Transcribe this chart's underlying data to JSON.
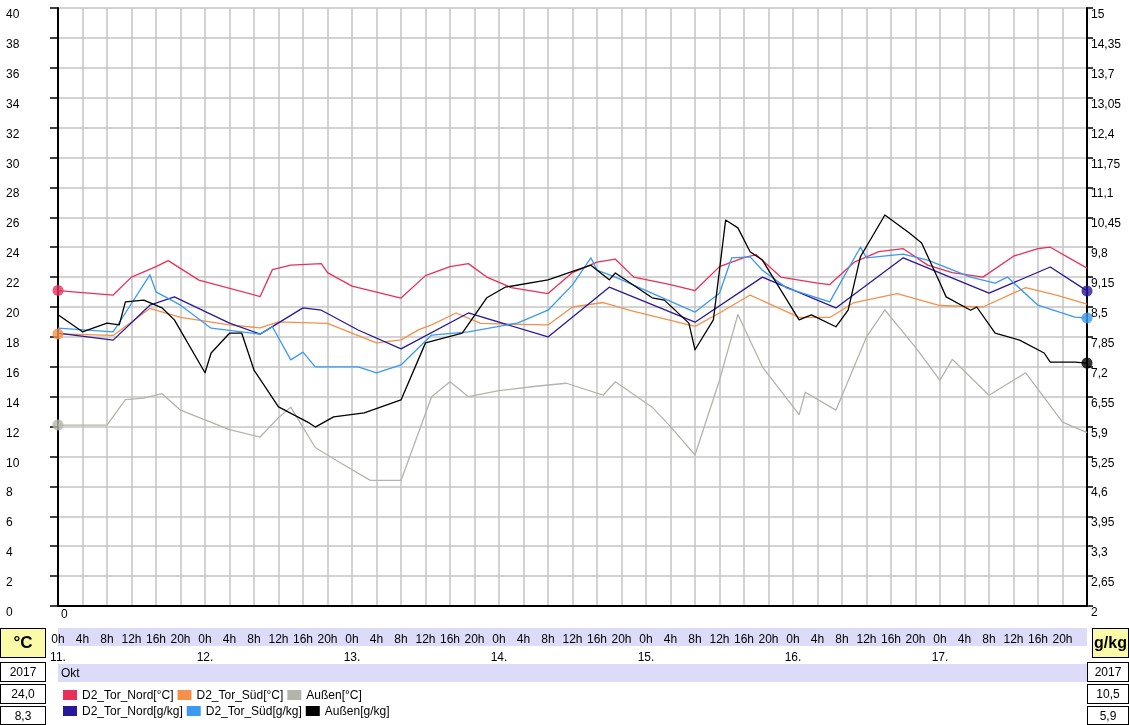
{
  "chart_data": {
    "type": "line",
    "ylabel": "°C",
    "y2label": "g/kg",
    "xlim": [
      "2017-10-11T00:00",
      "2017-10-18T00:00"
    ],
    "xticks": [
      {
        "value": "2017-10-11T00:00",
        "label": "0h\n11."
      },
      {
        "value": "2017-10-11T04:00",
        "label": "4h"
      },
      {
        "value": "2017-10-11T08:00",
        "label": "8h"
      },
      {
        "value": "2017-10-11T12:00",
        "label": "12h"
      },
      {
        "value": "2017-10-11T16:00",
        "label": "16h"
      },
      {
        "value": "2017-10-11T20:00",
        "label": "20h"
      },
      {
        "value": "2017-10-12T00:00",
        "label": "0h\n12."
      },
      {
        "value": "2017-10-12T04:00",
        "label": "4h"
      },
      {
        "value": "2017-10-12T08:00",
        "label": "8h"
      },
      {
        "value": "2017-10-12T12:00",
        "label": "12h"
      },
      {
        "value": "2017-10-12T16:00",
        "label": "16h"
      },
      {
        "value": "2017-10-12T20:00",
        "label": "20h"
      },
      {
        "value": "2017-10-13T00:00",
        "label": "0h\n13."
      },
      {
        "value": "2017-10-13T04:00",
        "label": "4h"
      },
      {
        "value": "2017-10-13T08:00",
        "label": "8h"
      },
      {
        "value": "2017-10-13T12:00",
        "label": "12h"
      },
      {
        "value": "2017-10-13T16:00",
        "label": "16h"
      },
      {
        "value": "2017-10-13T20:00",
        "label": "20h"
      },
      {
        "value": "2017-10-14T00:00",
        "label": "0h\n14."
      },
      {
        "value": "2017-10-14T04:00",
        "label": "4h"
      },
      {
        "value": "2017-10-14T08:00",
        "label": "8h"
      },
      {
        "value": "2017-10-14T12:00",
        "label": "12h"
      },
      {
        "value": "2017-10-14T16:00",
        "label": "16h"
      },
      {
        "value": "2017-10-14T20:00",
        "label": "20h"
      },
      {
        "value": "2017-10-15T00:00",
        "label": "0h\n15."
      },
      {
        "value": "2017-10-15T04:00",
        "label": "4h"
      },
      {
        "value": "2017-10-15T08:00",
        "label": "8h"
      },
      {
        "value": "2017-10-15T12:00",
        "label": "12h"
      },
      {
        "value": "2017-10-15T16:00",
        "label": "16h"
      },
      {
        "value": "2017-10-15T20:00",
        "label": "20h"
      },
      {
        "value": "2017-10-16T00:00",
        "label": "0h\n16."
      },
      {
        "value": "2017-10-16T04:00",
        "label": "4h"
      },
      {
        "value": "2017-10-16T08:00",
        "label": "8h"
      },
      {
        "value": "2017-10-16T12:00",
        "label": "12h"
      },
      {
        "value": "2017-10-16T16:00",
        "label": "16h"
      },
      {
        "value": "2017-10-16T20:00",
        "label": "20h"
      },
      {
        "value": "2017-10-17T00:00",
        "label": "0h\n17."
      },
      {
        "value": "2017-10-17T04:00",
        "label": "4h"
      },
      {
        "value": "2017-10-17T08:00",
        "label": "8h"
      },
      {
        "value": "2017-10-17T12:00",
        "label": "12h"
      },
      {
        "value": "2017-10-17T16:00",
        "label": "16h"
      },
      {
        "value": "2017-10-17T20:00",
        "label": "20h"
      }
    ],
    "ylim": [
      0,
      40
    ],
    "yticks": [
      0,
      2,
      4,
      6,
      8,
      10,
      12,
      14,
      16,
      18,
      20,
      22,
      24,
      26,
      28,
      30,
      32,
      34,
      36,
      38,
      40
    ],
    "y2lim": [
      2,
      15
    ],
    "y2ticks": [
      2,
      {
        "value": 2.65,
        "label": "2,65"
      },
      {
        "value": 3.3,
        "label": "3,3"
      },
      {
        "value": 3.95,
        "label": "3,95"
      },
      {
        "value": 4.6,
        "label": "4,6"
      },
      {
        "value": 5.25,
        "label": "5,25"
      },
      {
        "value": 5.9,
        "label": "5,9"
      },
      {
        "value": 6.55,
        "label": "6,55"
      },
      {
        "value": 7.2,
        "label": "7,2"
      },
      {
        "value": 7.85,
        "label": "7,85"
      },
      {
        "value": 8.5,
        "label": "8,5"
      },
      {
        "value": 9.15,
        "label": "9,15"
      },
      {
        "value": 9.8,
        "label": "9,8"
      },
      {
        "value": 10.45,
        "label": "10,45"
      },
      {
        "value": 11.1,
        "label": "11,1"
      },
      {
        "value": 11.75,
        "label": "11,75"
      },
      {
        "value": 12.4,
        "label": "12,4"
      },
      {
        "value": 13.05,
        "label": "13,05"
      },
      {
        "value": 13.7,
        "label": "13,7"
      },
      {
        "value": 14.35,
        "label": "14,35"
      },
      15
    ],
    "grid": true,
    "legend": "bottom",
    "annotations": [
      "0",
      "Okt",
      "2017",
      "24,0",
      "8,3",
      "2017",
      "10,5",
      "5,9"
    ],
    "series": [
      {
        "name": "D2_Tor_Nord[°C]",
        "color": "#e8305a",
        "x": [
          "2017-10-11T00:00",
          "2017-10-11T09:00",
          "2017-10-11T12:00",
          "2017-10-11T16:00",
          "2017-10-11T18:00",
          "2017-10-11T23:00",
          "2017-10-12T09:00",
          "2017-10-12T11:00",
          "2017-10-12T14:00",
          "2017-10-12T19:00",
          "2017-10-12T20:00",
          "2017-10-13T00:00",
          "2017-10-13T08:00",
          "2017-10-13T12:00",
          "2017-10-13T16:00",
          "2017-10-13T19:00",
          "2017-10-13T22:00",
          "2017-10-14T02:00",
          "2017-10-14T08:00",
          "2017-10-14T12:00",
          "2017-10-14T16:00",
          "2017-10-14T19:00",
          "2017-10-14T22:00",
          "2017-10-15T04:00",
          "2017-10-15T08:00",
          "2017-10-15T12:00",
          "2017-10-15T16:00",
          "2017-10-15T18:00",
          "2017-10-15T22:00",
          "2017-10-16T04:00",
          "2017-10-16T06:00",
          "2017-10-16T10:00",
          "2017-10-16T14:00",
          "2017-10-16T18:00",
          "2017-10-16T22:00",
          "2017-10-17T02:00",
          "2017-10-17T07:00",
          "2017-10-17T12:00",
          "2017-10-17T16:00",
          "2017-10-17T18:00",
          "2017-10-18T00:00"
        ],
        "values": [
          21.1,
          20.8,
          22.0,
          22.7,
          23.1,
          21.8,
          20.7,
          22.5,
          22.8,
          22.9,
          22.3,
          21.4,
          20.6,
          22.1,
          22.7,
          22.9,
          22.0,
          21.3,
          20.9,
          22.3,
          23.0,
          23.2,
          22.0,
          21.5,
          21.1,
          22.7,
          23.3,
          23.5,
          22.0,
          21.6,
          21.5,
          23.0,
          23.7,
          23.9,
          22.8,
          22.3,
          22.0,
          23.4,
          23.9,
          24.0,
          22.6
        ]
      },
      {
        "name": "D2_Tor_Süd[°C]",
        "color": "#f4904a",
        "x": [
          "2017-10-11T00:00",
          "2017-10-11T09:00",
          "2017-10-11T15:00",
          "2017-10-11T20:00",
          "2017-10-12T04:00",
          "2017-10-12T09:00",
          "2017-10-12T12:00",
          "2017-10-12T20:00",
          "2017-10-13T04:00",
          "2017-10-13T08:00",
          "2017-10-13T11:00",
          "2017-10-13T13:00",
          "2017-10-13T17:00",
          "2017-10-13T21:00",
          "2017-10-14T08:00",
          "2017-10-14T12:00",
          "2017-10-14T17:00",
          "2017-10-14T22:00",
          "2017-10-15T08:00",
          "2017-10-15T12:00",
          "2017-10-15T17:00",
          "2017-10-16T01:00",
          "2017-10-16T06:00",
          "2017-10-16T10:00",
          "2017-10-16T17:00",
          "2017-10-17T00:00",
          "2017-10-17T07:00",
          "2017-10-17T14:00",
          "2017-10-17T19:00",
          "2017-10-18T00:00"
        ],
        "values": [
          18.2,
          18.1,
          19.9,
          19.3,
          18.8,
          18.6,
          19.0,
          18.9,
          17.6,
          17.8,
          18.5,
          18.8,
          19.6,
          18.9,
          18.8,
          20.0,
          20.3,
          19.7,
          18.7,
          19.6,
          20.8,
          19.3,
          19.3,
          20.3,
          20.9,
          20.1,
          20.0,
          21.3,
          20.8,
          20.2
        ]
      },
      {
        "name": "Außen[°C]",
        "color": "#b4b4ac",
        "x": [
          "2017-10-11T00:00",
          "2017-10-11T08:00",
          "2017-10-11T11:00",
          "2017-10-11T14:00",
          "2017-10-11T17:00",
          "2017-10-11T20:00",
          "2017-10-12T04:00",
          "2017-10-12T09:00",
          "2017-10-12T12:00",
          "2017-10-12T14:00",
          "2017-10-12T18:00",
          "2017-10-12T22:00",
          "2017-10-13T03:00",
          "2017-10-13T08:00",
          "2017-10-13T13:00",
          "2017-10-13T16:00",
          "2017-10-13T19:00",
          "2017-10-14T00:00",
          "2017-10-14T06:00",
          "2017-10-14T11:00",
          "2017-10-14T17:00",
          "2017-10-14T19:00",
          "2017-10-15T01:00",
          "2017-10-15T04:00",
          "2017-10-15T08:00",
          "2017-10-15T12:00",
          "2017-10-15T15:00",
          "2017-10-15T19:00",
          "2017-10-16T01:00",
          "2017-10-16T02:00",
          "2017-10-16T07:00",
          "2017-10-16T12:00",
          "2017-10-16T15:00",
          "2017-10-16T20:00",
          "2017-10-17T00:00",
          "2017-10-17T02:00",
          "2017-10-17T08:00",
          "2017-10-17T14:00",
          "2017-10-17T20:00",
          "2017-10-18T00:00"
        ],
        "values": [
          12.1,
          12.1,
          13.8,
          13.9,
          14.2,
          13.1,
          11.8,
          11.3,
          12.6,
          13.3,
          10.6,
          9.6,
          8.4,
          8.4,
          14.0,
          15.0,
          14.0,
          14.4,
          14.7,
          14.9,
          14.1,
          15.0,
          13.3,
          12.0,
          10.1,
          15.1,
          19.5,
          16.0,
          12.8,
          14.3,
          13.1,
          18.0,
          19.8,
          17.3,
          15.1,
          16.5,
          14.1,
          15.6,
          12.3,
          11.6
        ]
      },
      {
        "name": "D2_Tor_Nord[g/kg]",
        "color": "#2a189a",
        "axis": "y2",
        "x": [
          "2017-10-11T00:00",
          "2017-10-11T09:00",
          "2017-10-11T15:00",
          "2017-10-11T19:00",
          "2017-10-12T04:00",
          "2017-10-12T09:00",
          "2017-10-12T16:00",
          "2017-10-12T19:00",
          "2017-10-13T01:00",
          "2017-10-13T08:00",
          "2017-10-13T19:00",
          "2017-10-14T08:00",
          "2017-10-14T18:00",
          "2017-10-15T08:00",
          "2017-10-15T19:00",
          "2017-10-16T07:00",
          "2017-10-16T18:00",
          "2017-10-17T08:00",
          "2017-10-17T18:00",
          "2017-10-18T00:00"
        ],
        "values": [
          7.93,
          7.78,
          8.54,
          8.72,
          8.15,
          7.91,
          8.48,
          8.43,
          8.0,
          7.59,
          8.37,
          7.85,
          8.93,
          8.17,
          9.15,
          8.48,
          9.57,
          8.8,
          9.37,
          8.85
        ]
      },
      {
        "name": "D2_Tor_Süd[g/kg]",
        "color": "#3a9af0",
        "axis": "y2",
        "x": [
          "2017-10-11T00:00",
          "2017-10-11T09:00",
          "2017-10-11T11:00",
          "2017-10-11T15:00",
          "2017-10-11T16:00",
          "2017-10-11T20:00",
          "2017-10-12T01:00",
          "2017-10-12T09:00",
          "2017-10-12T11:00",
          "2017-10-12T14:00",
          "2017-10-12T16:00",
          "2017-10-12T18:00",
          "2017-10-13T01:00",
          "2017-10-13T04:00",
          "2017-10-13T08:00",
          "2017-10-13T13:00",
          "2017-10-13T19:00",
          "2017-10-14T03:00",
          "2017-10-14T08:00",
          "2017-10-14T12:00",
          "2017-10-14T15:00",
          "2017-10-14T16:00",
          "2017-10-14T19:00",
          "2017-10-15T08:00",
          "2017-10-15T12:00",
          "2017-10-15T14:00",
          "2017-10-15T17:00",
          "2017-10-15T19:00",
          "2017-10-15T23:00",
          "2017-10-16T06:00",
          "2017-10-16T11:00",
          "2017-10-16T12:00",
          "2017-10-16T18:00",
          "2017-10-16T22:00",
          "2017-10-17T05:00",
          "2017-10-17T09:00",
          "2017-10-17T11:00",
          "2017-10-17T16:00",
          "2017-10-17T22:00",
          "2017-10-18T00:00"
        ],
        "values": [
          8.04,
          7.96,
          8.37,
          9.2,
          8.83,
          8.54,
          8.04,
          7.91,
          8.07,
          7.35,
          7.52,
          7.2,
          7.2,
          7.07,
          7.24,
          7.89,
          7.96,
          8.15,
          8.43,
          8.98,
          9.57,
          9.3,
          9.15,
          8.39,
          8.8,
          9.57,
          9.59,
          9.3,
          8.91,
          8.61,
          9.8,
          9.57,
          9.65,
          9.52,
          9.15,
          9.02,
          9.15,
          8.54,
          8.28,
          8.26
        ]
      },
      {
        "name": "Außen[g/kg]",
        "color": "#000000",
        "axis": "y2",
        "x": [
          "2017-10-11T00:00",
          "2017-10-11T04:00",
          "2017-10-11T08:00",
          "2017-10-11T10:00",
          "2017-10-11T11:00",
          "2017-10-11T14:00",
          "2017-10-11T17:00",
          "2017-10-11T19:00",
          "2017-10-12T00:00",
          "2017-10-12T01:00",
          "2017-10-12T04:00",
          "2017-10-12T06:00",
          "2017-10-12T08:00",
          "2017-10-12T12:00",
          "2017-10-12T17:00",
          "2017-10-12T18:00",
          "2017-10-12T21:00",
          "2017-10-13T02:00",
          "2017-10-13T08:00",
          "2017-10-13T12:00",
          "2017-10-13T18:00",
          "2017-10-13T22:00",
          "2017-10-14T01:00",
          "2017-10-14T08:00",
          "2017-10-14T15:00",
          "2017-10-14T18:00",
          "2017-10-14T19:00",
          "2017-10-15T01:00",
          "2017-10-15T03:00",
          "2017-10-15T07:00",
          "2017-10-15T08:00",
          "2017-10-15T11:00",
          "2017-10-15T13:00",
          "2017-10-15T15:00",
          "2017-10-15T17:00",
          "2017-10-15T19:00",
          "2017-10-16T01:00",
          "2017-10-16T03:00",
          "2017-10-16T07:00",
          "2017-10-16T09:00",
          "2017-10-16T11:00",
          "2017-10-16T15:00",
          "2017-10-16T19:00",
          "2017-10-16T21:00",
          "2017-10-17T00:00",
          "2017-10-17T01:00",
          "2017-10-17T05:00",
          "2017-10-17T06:00",
          "2017-10-17T09:00",
          "2017-10-17T13:00",
          "2017-10-17T17:00",
          "2017-10-17T18:00",
          "2017-10-17T22:00",
          "2017-10-18T00:00"
        ],
        "values": [
          8.33,
          7.96,
          8.15,
          8.11,
          8.61,
          8.65,
          8.48,
          8.22,
          7.07,
          7.5,
          7.93,
          7.93,
          7.13,
          6.33,
          5.98,
          5.89,
          6.11,
          6.2,
          6.48,
          7.72,
          7.93,
          8.7,
          8.93,
          9.09,
          9.41,
          9.09,
          9.24,
          8.7,
          8.65,
          8.15,
          7.57,
          8.22,
          10.39,
          10.22,
          9.7,
          9.52,
          8.22,
          8.33,
          8.07,
          8.43,
          9.59,
          10.5,
          10.11,
          9.89,
          9.02,
          8.72,
          8.43,
          8.5,
          7.93,
          7.78,
          7.5,
          7.3,
          7.3,
          7.28
        ]
      },
      {
        "type": "scatter",
        "marker": "circle",
        "color": "#e8305a",
        "x": [
          "2017-10-11T00:00"
        ],
        "values": [
          21.1
        ]
      },
      {
        "type": "scatter",
        "marker": "circle",
        "color": "#f4904a",
        "x": [
          "2017-10-11T00:00"
        ],
        "values": [
          18.2
        ]
      },
      {
        "type": "scatter",
        "marker": "circle",
        "color": "#b4b4ac",
        "x": [
          "2017-10-11T00:00"
        ],
        "values": [
          12.1
        ]
      },
      {
        "type": "scatter",
        "marker": "circle",
        "color": "#2a189a",
        "axis": "y2",
        "x": [
          "2017-10-18T00:00"
        ],
        "values": [
          8.85
        ]
      },
      {
        "type": "scatter",
        "marker": "circle",
        "color": "#3a9af0",
        "axis": "y2",
        "x": [
          "2017-10-18T00:00"
        ],
        "values": [
          8.26
        ]
      },
      {
        "type": "scatter",
        "marker": "circle",
        "color": "#000000",
        "axis": "y2",
        "x": [
          "2017-10-18T00:00"
        ],
        "values": [
          7.28
        ]
      }
    ]
  }
}
